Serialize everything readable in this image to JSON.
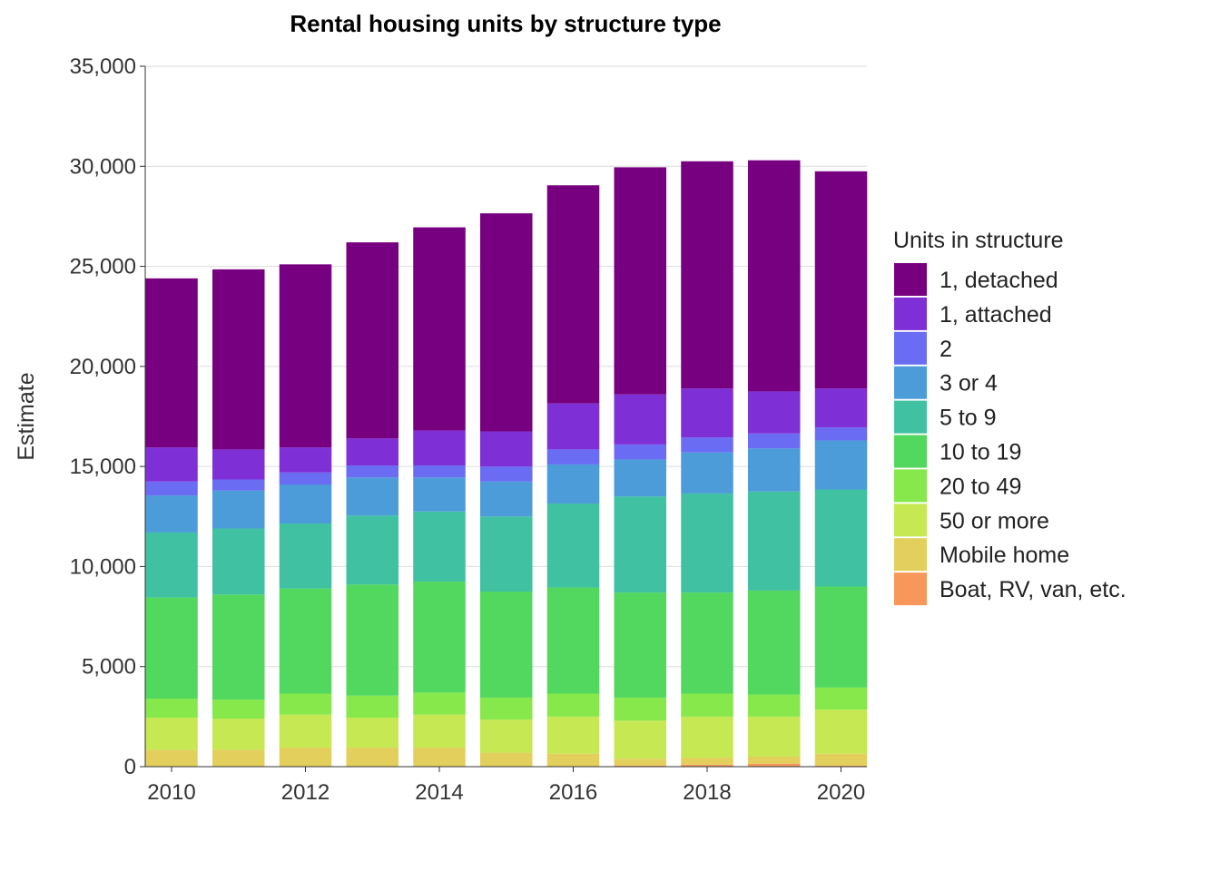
{
  "chart_data": {
    "type": "bar",
    "stacked": true,
    "title": "Rental housing units by structure type",
    "xlabel": "",
    "ylabel": "Estimate",
    "ylim": [
      0,
      35000
    ],
    "yticks": [
      0,
      5000,
      10000,
      15000,
      20000,
      25000,
      30000,
      35000
    ],
    "ytick_labels": [
      "0",
      "5,000",
      "10,000",
      "15,000",
      "20,000",
      "25,000",
      "30,000",
      "35,000"
    ],
    "xticks": [
      2010,
      2012,
      2014,
      2016,
      2018,
      2020
    ],
    "xtick_labels": [
      "2010",
      "2012",
      "2014",
      "2016",
      "2018",
      "2020"
    ],
    "grid": "horizontal",
    "legend_title": "Units in structure",
    "legend_position": "right",
    "categories": [
      2010,
      2011,
      2012,
      2013,
      2014,
      2015,
      2016,
      2017,
      2018,
      2019,
      2020
    ],
    "series": [
      {
        "name": "Boat, RV, van, etc.",
        "color": "#F8975A",
        "values": [
          0,
          0,
          0,
          0,
          0,
          0,
          0,
          50,
          100,
          150,
          50
        ]
      },
      {
        "name": "Mobile home",
        "color": "#E3D05C",
        "values": [
          850,
          850,
          950,
          950,
          950,
          700,
          650,
          350,
          350,
          350,
          600
        ]
      },
      {
        "name": "50 or more",
        "color": "#C6E853",
        "values": [
          1600,
          1550,
          1650,
          1500,
          1650,
          1650,
          1850,
          1900,
          2050,
          2000,
          2200
        ]
      },
      {
        "name": "20 to 49",
        "color": "#86E84B",
        "values": [
          950,
          950,
          1050,
          1100,
          1100,
          1100,
          1150,
          1150,
          1150,
          1100,
          1100
        ]
      },
      {
        "name": "10 to 19",
        "color": "#52D85E",
        "values": [
          5050,
          5250,
          5250,
          5550,
          5550,
          5300,
          5300,
          5250,
          5050,
          5200,
          5050
        ]
      },
      {
        "name": "5 to 9",
        "color": "#3FC1A2",
        "values": [
          3250,
          3300,
          3250,
          3450,
          3500,
          3750,
          4200,
          4800,
          4950,
          4950,
          4850
        ]
      },
      {
        "name": "3 or 4",
        "color": "#4B9CD8",
        "values": [
          1850,
          1900,
          1950,
          1900,
          1700,
          1750,
          1950,
          1850,
          2050,
          2150,
          2450
        ]
      },
      {
        "name": "2",
        "color": "#6A6CF4",
        "values": [
          700,
          550,
          600,
          600,
          600,
          750,
          750,
          750,
          750,
          750,
          650
        ]
      },
      {
        "name": "1, attached",
        "color": "#7F2FD6",
        "values": [
          1700,
          1500,
          1250,
          1350,
          1750,
          1750,
          2300,
          2500,
          2450,
          2100,
          1950
        ]
      },
      {
        "name": "1, detached",
        "color": "#76007F",
        "values": [
          8450,
          9000,
          9150,
          9800,
          10150,
          10900,
          10900,
          11350,
          11350,
          11550,
          10850
        ]
      }
    ]
  }
}
